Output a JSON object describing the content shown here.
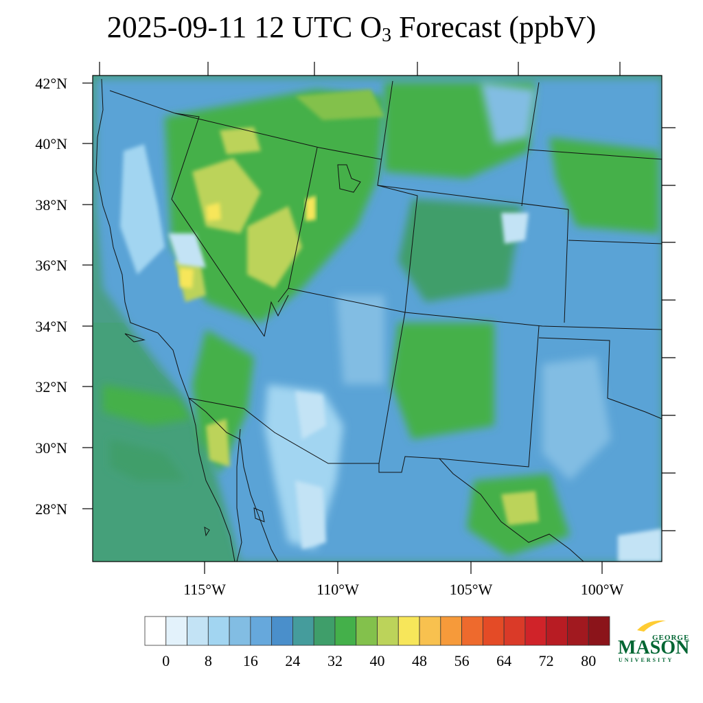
{
  "title": {
    "main": "2025-09-11 12 UTC O",
    "subscript": "3",
    "rest": " Forecast (ppbV)"
  },
  "map": {
    "lat_labels": [
      "42°N",
      "40°N",
      "38°N",
      "36°N",
      "34°N",
      "32°N",
      "30°N",
      "28°N"
    ],
    "lon_labels": [
      "115°W",
      "110°W",
      "105°W",
      "100°W"
    ]
  },
  "colorbar": {
    "colors": [
      "#ffffff",
      "#e3f2fb",
      "#c3e3f5",
      "#a2d5f1",
      "#82bde3",
      "#66a8dc",
      "#4a8fcb",
      "#459c9c",
      "#3f9e6a",
      "#44b04a",
      "#83c14c",
      "#bcd35a",
      "#f7e65a",
      "#f8c14f",
      "#f69a3a",
      "#ee6a2d",
      "#e44b26",
      "#da3a28",
      "#d02329",
      "#b81c23",
      "#a1191f",
      "#8b141a"
    ],
    "tick_labels": [
      "0",
      "8",
      "16",
      "24",
      "32",
      "40",
      "48",
      "56",
      "64",
      "72",
      "80"
    ]
  },
  "logo": {
    "top": "GEORGE",
    "main": "MASON",
    "bottom": "UNIVERSITY",
    "green": "#006633",
    "gold": "#ffcc33"
  }
}
